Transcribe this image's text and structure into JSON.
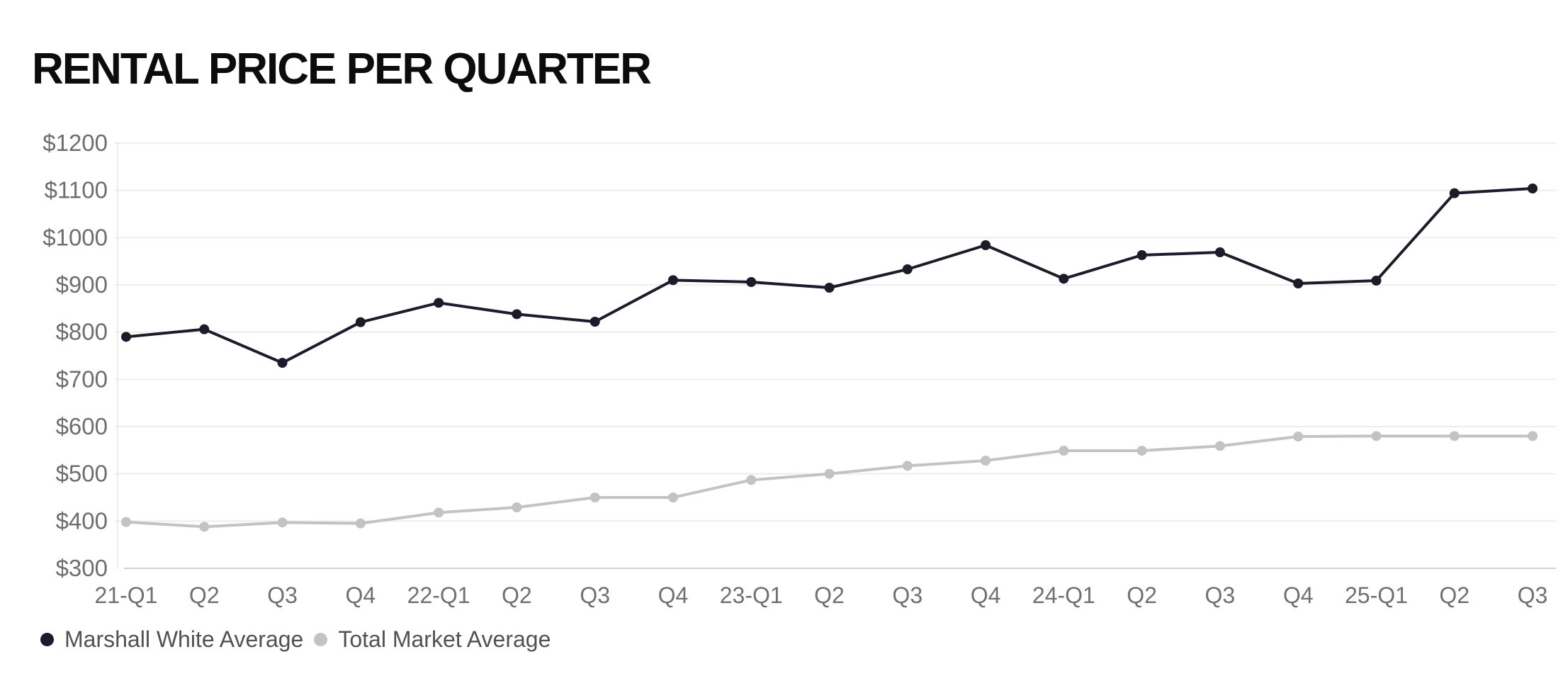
{
  "title": "RENTAL PRICE PER QUARTER",
  "legend": {
    "items": [
      {
        "label": "Marshall White Average",
        "color": "#1b1b29"
      },
      {
        "label": "Total Market Average",
        "color": "#c3c3c7"
      }
    ]
  },
  "chart_data": {
    "type": "line",
    "title": "RENTAL PRICE PER QUARTER",
    "categories": [
      "21-Q1",
      "Q2",
      "Q3",
      "Q4",
      "22-Q1",
      "Q2",
      "Q3",
      "Q4",
      "23-Q1",
      "Q2",
      "Q3",
      "Q4",
      "24-Q1",
      "Q2",
      "Q3",
      "Q4",
      "25-Q1",
      "Q2",
      "Q3"
    ],
    "series": [
      {
        "name": "Marshall White Average",
        "color": "#1b1b29",
        "values": [
          790,
          806,
          735,
          821,
          862,
          838,
          822,
          910,
          906,
          894,
          933,
          984,
          913,
          963,
          969,
          903,
          909,
          1094,
          1104
        ]
      },
      {
        "name": "Total Market Average",
        "color": "#c3c3c7",
        "values": [
          398,
          388,
          397,
          395,
          418,
          429,
          450,
          450,
          487,
          500,
          517,
          528,
          549,
          549,
          559,
          579,
          580,
          580,
          580
        ]
      }
    ],
    "ylabel": "",
    "xlabel": "",
    "ylim": [
      300,
      1200
    ],
    "ytick_step": 100,
    "ytick_prefix": "$",
    "grid": "horizontal",
    "legend_position": "bottom-left",
    "colors": {
      "gridline": "#ededef",
      "axis_line": "#d2d2d6",
      "plot_left_border": "#ececee",
      "y_tick_text": "#6e6e72",
      "x_tick_text": "#707074",
      "title_text": "#0c0c0c",
      "legend_text": "#515155",
      "background": "#ffffff"
    }
  }
}
